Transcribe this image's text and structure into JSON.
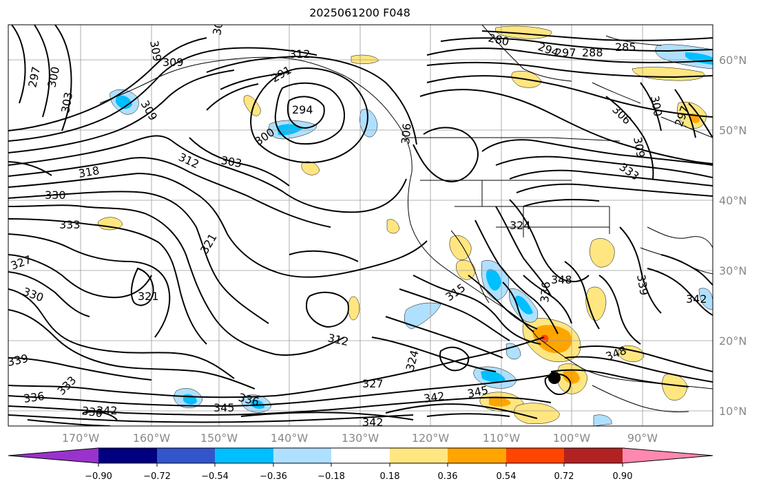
{
  "title": "2025061200 F048",
  "map": {
    "lon_labels": [
      "170°W",
      "160°W",
      "150°W",
      "140°W",
      "130°W",
      "120°W",
      "110°W",
      "100°W",
      "90°W"
    ],
    "lat_labels": [
      "60°N",
      "50°N",
      "40°N",
      "30°N",
      "20°N",
      "10°N"
    ],
    "contour_labels": [
      {
        "id": "c297a",
        "text": "297"
      },
      {
        "id": "c300a",
        "text": "300"
      },
      {
        "id": "c303a",
        "text": "303"
      },
      {
        "id": "c309a",
        "text": "309"
      },
      {
        "id": "c309b",
        "text": "309"
      },
      {
        "id": "c306a",
        "text": "306"
      },
      {
        "id": "c309c",
        "text": "309"
      },
      {
        "id": "c312a",
        "text": "312"
      },
      {
        "id": "c291",
        "text": "291"
      },
      {
        "id": "c294",
        "text": "294"
      },
      {
        "id": "c300b",
        "text": "300"
      },
      {
        "id": "c303b",
        "text": "303"
      },
      {
        "id": "c312b",
        "text": "312"
      },
      {
        "id": "c318",
        "text": "318"
      },
      {
        "id": "c330a",
        "text": "330"
      },
      {
        "id": "c333a",
        "text": "333"
      },
      {
        "id": "c321a",
        "text": "321"
      },
      {
        "id": "c327a",
        "text": "327"
      },
      {
        "id": "c330b",
        "text": "330"
      },
      {
        "id": "c321b",
        "text": "321"
      },
      {
        "id": "c339a",
        "text": "339"
      },
      {
        "id": "c336a",
        "text": "336"
      },
      {
        "id": "c333b",
        "text": "333"
      },
      {
        "id": "c330c",
        "text": "330"
      },
      {
        "id": "c342a",
        "text": "342"
      },
      {
        "id": "c345a",
        "text": "345"
      },
      {
        "id": "c336b",
        "text": "336"
      },
      {
        "id": "c327b",
        "text": "327"
      },
      {
        "id": "c312c",
        "text": "312"
      },
      {
        "id": "c315",
        "text": "315"
      },
      {
        "id": "c342b",
        "text": "342"
      },
      {
        "id": "c345b",
        "text": "345"
      },
      {
        "id": "c342c",
        "text": "342"
      },
      {
        "id": "c324a",
        "text": "324"
      },
      {
        "id": "c280",
        "text": "280"
      },
      {
        "id": "c294b",
        "text": "294"
      },
      {
        "id": "c297b",
        "text": "297"
      },
      {
        "id": "c288",
        "text": "288"
      },
      {
        "id": "c285",
        "text": "285"
      },
      {
        "id": "c306b",
        "text": "306"
      },
      {
        "id": "c300c",
        "text": "300"
      },
      {
        "id": "c297c",
        "text": "297"
      },
      {
        "id": "c309d",
        "text": "309"
      },
      {
        "id": "c333c",
        "text": "333"
      },
      {
        "id": "c324b",
        "text": "324"
      },
      {
        "id": "c348",
        "text": "348"
      },
      {
        "id": "c336c",
        "text": "336"
      },
      {
        "id": "c339b",
        "text": "339"
      },
      {
        "id": "c342d",
        "text": "342"
      },
      {
        "id": "c348b",
        "text": "348"
      },
      {
        "id": "c306c",
        "text": "306"
      }
    ]
  },
  "colorbar": {
    "colors": [
      "#9933cc",
      "#000080",
      "#3355cc",
      "#00bfff",
      "#b0e0ff",
      "#ffffff",
      "#ffe680",
      "#ffa500",
      "#ff4500",
      "#b22222",
      "#ff88b0"
    ],
    "tick_labels": [
      "−0.90",
      "−0.72",
      "−0.54",
      "−0.36",
      "−0.18",
      "0.18",
      "0.36",
      "0.54",
      "0.72",
      "0.90"
    ]
  },
  "shading_colors": {
    "light_yellow": "#ffe680",
    "orange": "#ffa500",
    "red": "#ff4500",
    "light_blue": "#b0e0ff",
    "blue": "#00bfff"
  }
}
